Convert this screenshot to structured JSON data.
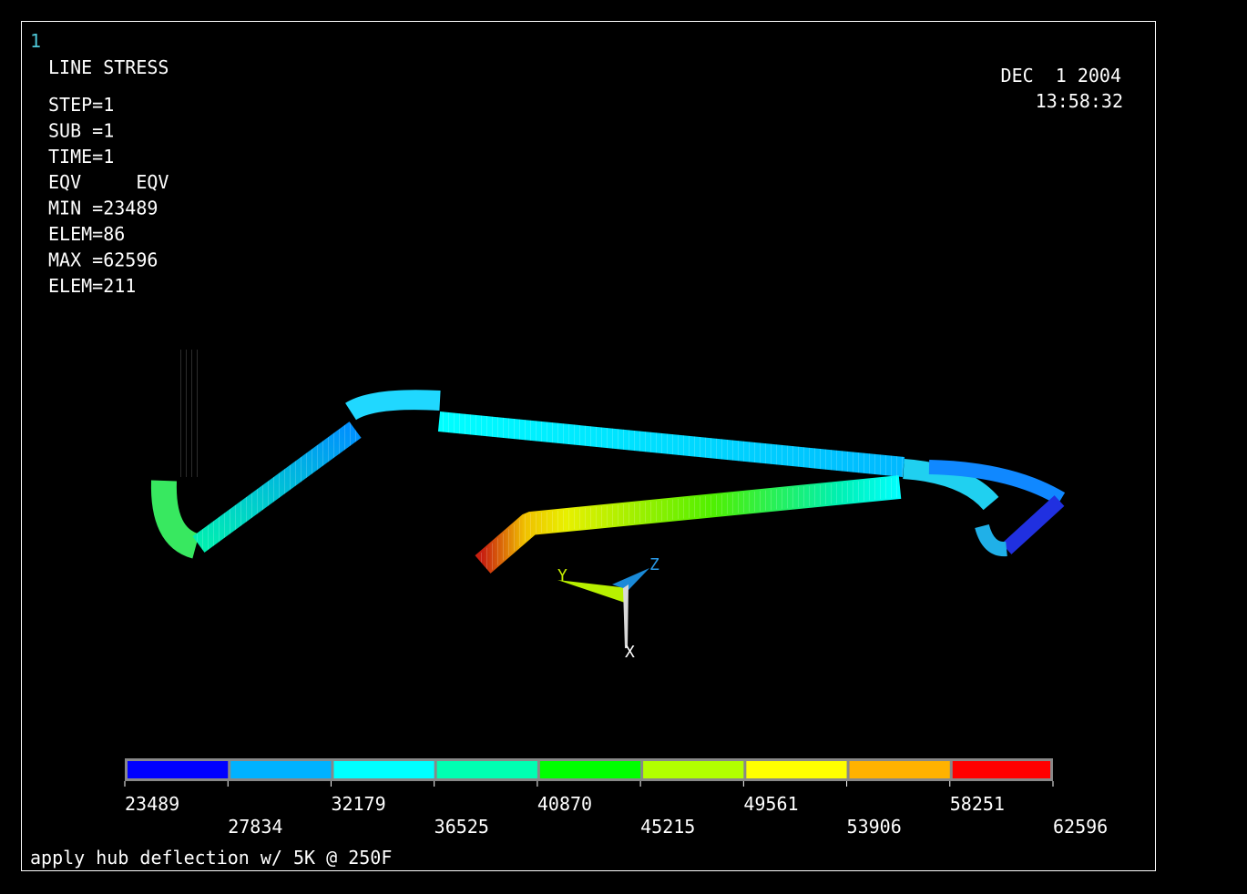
{
  "window_number": "1",
  "plot_title": "LINE STRESS",
  "info_lines": [
    "STEP=1",
    "SUB =1",
    "TIME=1",
    "EQV     EQV",
    "MIN =23489",
    "ELEM=86",
    "MAX =62596",
    "ELEM=211"
  ],
  "date": "DEC  1 2004",
  "time": "13:58:32",
  "triad": {
    "y_label": "Y",
    "z_label": "Z",
    "x_label": "X"
  },
  "legend": {
    "boundaries": [
      "23489",
      "27834",
      "32179",
      "36525",
      "40870",
      "45215",
      "49561",
      "53906",
      "58251",
      "62596"
    ],
    "colors": [
      "#0000ff",
      "#00b2ff",
      "#00ffff",
      "#00ffb2",
      "#00ff00",
      "#b2ff00",
      "#ffff00",
      "#ffb200",
      "#ff0000"
    ]
  },
  "caption": "apply hub deflection w/ 5K @ 250F"
}
